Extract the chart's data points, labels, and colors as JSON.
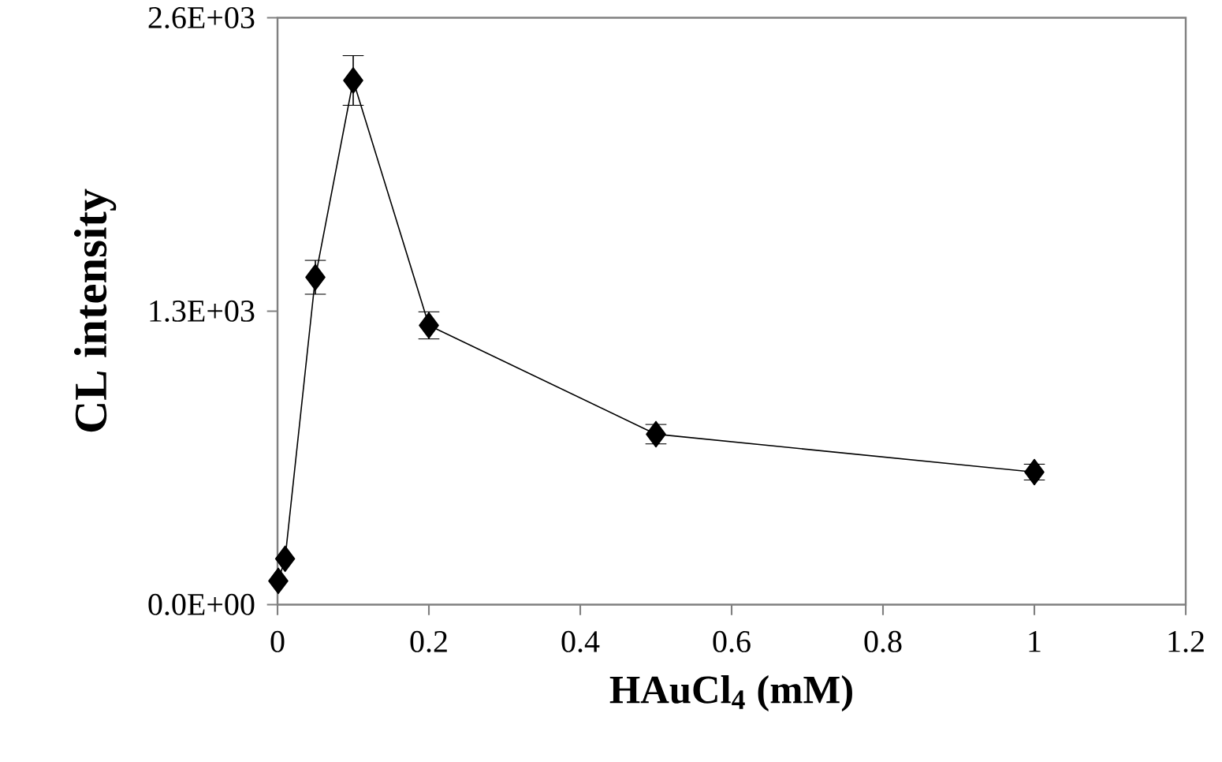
{
  "chart_data": {
    "type": "line",
    "xlabel": "HAuCl$_{4}$ (mM)",
    "ylabel": "CL intensity",
    "x": [
      0.001,
      0.01,
      0.05,
      0.1,
      0.2,
      0.5,
      1.0
    ],
    "series": [
      {
        "color": "#000000",
        "values": [
          105,
          203,
          1450,
          2322,
          1237,
          755,
          587
        ],
        "errors": [
          null,
          null,
          75,
          110,
          60,
          43,
          35
        ]
      }
    ],
    "xlim": [
      0,
      1.2
    ],
    "xticks": [
      0,
      0.2,
      0.4,
      0.6,
      0.8,
      1,
      1.2
    ],
    "ylim": [
      0,
      2600
    ],
    "yticks": [
      {
        "value": 0,
        "label": "0.0E+00"
      },
      {
        "value": 1300,
        "label": "1.3E+03"
      },
      {
        "value": 2600,
        "label": "2.6E+03"
      }
    ],
    "marker": "diamond",
    "line_style": "solid"
  }
}
